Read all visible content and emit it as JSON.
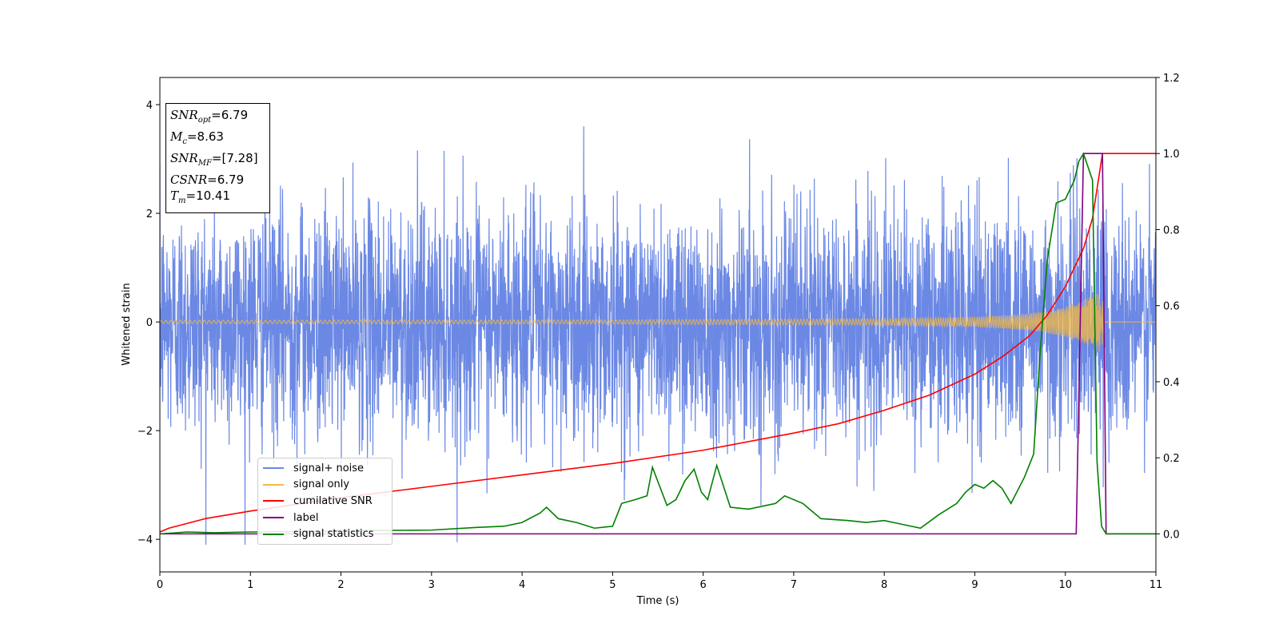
{
  "chart_data": {
    "type": "line",
    "xlabel": "Time (s)",
    "ylabel_left": "Whitened strain",
    "xlim": [
      0,
      11
    ],
    "ylim_left": [
      -4.6,
      4.5
    ],
    "ylim_right": [
      -0.1,
      1.2
    ],
    "xticks": [
      "0",
      "1",
      "2",
      "3",
      "4",
      "5",
      "6",
      "7",
      "8",
      "9",
      "10",
      "11"
    ],
    "yticks_left": [
      "−4",
      "−2",
      "0",
      "2",
      "4"
    ],
    "yticks_right": [
      "0.0",
      "0.2",
      "0.4",
      "0.6",
      "0.8",
      "1.0",
      "1.2"
    ],
    "grid": false,
    "legend_position": "lower-left",
    "annotation": {
      "snr_opt": "6.79",
      "mc": "8.63",
      "snr_mf": "[7.28]",
      "csnr": "6.79",
      "tm": "10.41"
    },
    "series": [
      {
        "name": "signal+ noise",
        "axis": "left",
        "color": "#6b88e4",
        "description_range": [
          -4.1,
          4.1
        ],
        "noise_sigma": 1.0,
        "x_range": [
          0,
          11
        ]
      },
      {
        "name": "signal only",
        "axis": "left",
        "color": "#f5b942",
        "x_range": [
          0,
          11
        ],
        "envelope_x": [
          0,
          5,
          8,
          9,
          9.5,
          9.8,
          10.0,
          10.2,
          10.35,
          10.41,
          10.42,
          11
        ],
        "envelope_y": [
          0.03,
          0.04,
          0.06,
          0.09,
          0.14,
          0.2,
          0.28,
          0.4,
          0.52,
          0.6,
          0.0,
          0.0
        ]
      },
      {
        "name": "cumilative SNR",
        "axis": "right",
        "color": "#ff0000",
        "x": [
          0,
          0.1,
          0.5,
          1,
          2,
          3,
          4,
          5,
          6,
          7,
          7.5,
          8,
          8.5,
          9,
          9.3,
          9.6,
          9.8,
          10.0,
          10.2,
          10.3,
          10.41,
          10.42,
          11
        ],
        "values": [
          0.005,
          0.015,
          0.04,
          0.06,
          0.095,
          0.125,
          0.155,
          0.185,
          0.22,
          0.265,
          0.29,
          0.325,
          0.365,
          0.42,
          0.465,
          0.52,
          0.575,
          0.65,
          0.75,
          0.83,
          1.0,
          1.0,
          1.0
        ]
      },
      {
        "name": "label",
        "axis": "right",
        "color": "#800080",
        "x": [
          0,
          10.12,
          10.2,
          10.41,
          10.45,
          11
        ],
        "values": [
          0,
          0,
          1,
          1,
          0,
          0
        ]
      },
      {
        "name": "signal statistics",
        "axis": "right",
        "color": "#008000",
        "x": [
          0,
          0.3,
          0.6,
          1,
          1.5,
          2,
          2.5,
          3,
          3.5,
          3.8,
          4.0,
          4.2,
          4.27,
          4.4,
          4.6,
          4.8,
          5.0,
          5.1,
          5.25,
          5.38,
          5.44,
          5.6,
          5.7,
          5.8,
          5.9,
          5.98,
          6.05,
          6.15,
          6.3,
          6.5,
          6.7,
          6.8,
          6.9,
          7.1,
          7.3,
          7.6,
          7.8,
          8.0,
          8.2,
          8.4,
          8.6,
          8.8,
          8.9,
          9.0,
          9.1,
          9.2,
          9.3,
          9.4,
          9.55,
          9.65,
          9.72,
          9.8,
          9.9,
          10.0,
          10.1,
          10.15,
          10.2,
          10.3,
          10.35,
          10.4,
          10.45,
          10.6,
          11
        ],
        "values": [
          0.0,
          0.005,
          0.003,
          0.005,
          0.006,
          0.008,
          0.009,
          0.01,
          0.017,
          0.02,
          0.03,
          0.055,
          0.07,
          0.04,
          0.03,
          0.015,
          0.02,
          0.08,
          0.09,
          0.1,
          0.175,
          0.075,
          0.09,
          0.14,
          0.17,
          0.11,
          0.09,
          0.18,
          0.07,
          0.065,
          0.075,
          0.08,
          0.1,
          0.08,
          0.04,
          0.035,
          0.03,
          0.035,
          0.025,
          0.015,
          0.05,
          0.08,
          0.11,
          0.13,
          0.12,
          0.14,
          0.12,
          0.08,
          0.15,
          0.21,
          0.47,
          0.72,
          0.87,
          0.88,
          0.93,
          0.98,
          1.0,
          0.93,
          0.19,
          0.02,
          0.0,
          0.0,
          0.0
        ]
      }
    ]
  }
}
